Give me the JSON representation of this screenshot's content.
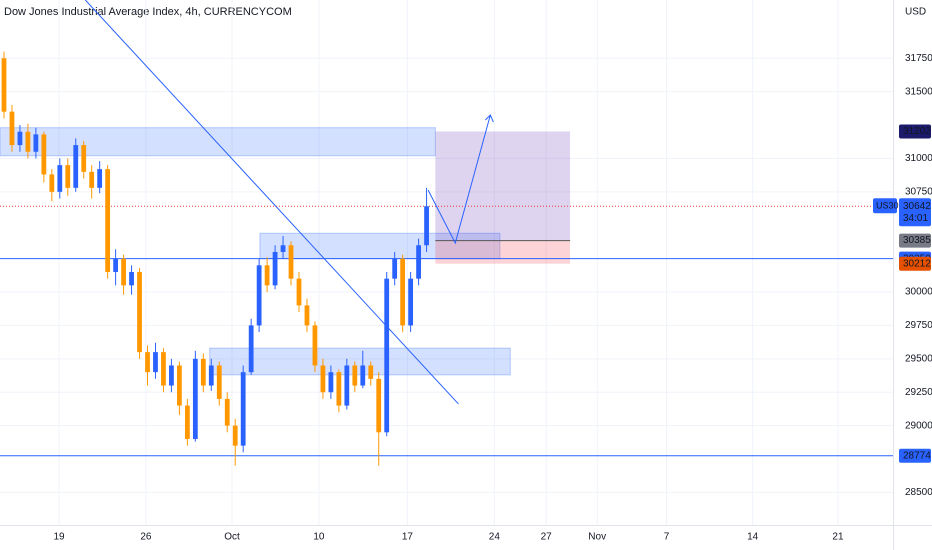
{
  "chart_data": {
    "type": "candlestick",
    "title": "Dow Jones Industrial Average Index, 4h, CURRENCYCOM",
    "y_unit": "USD",
    "symbol": "US30",
    "countdown": "34:01",
    "up_color": "#2962ff",
    "down_color": "#ff9800",
    "grid": true,
    "xlim": [
      0,
      112
    ],
    "ylim": [
      28256,
      32186
    ],
    "xticks": [
      {
        "value": 7.4,
        "label": "19"
      },
      {
        "value": 18.3,
        "label": "26"
      },
      {
        "value": 29.1,
        "label": "Oct"
      },
      {
        "value": 40,
        "label": "10"
      },
      {
        "value": 51.1,
        "label": "17"
      },
      {
        "value": 62,
        "label": "24"
      },
      {
        "value": 68.5,
        "label": "27"
      },
      {
        "value": 74.9,
        "label": "Nov"
      },
      {
        "value": 83.6,
        "label": "7"
      },
      {
        "value": 94.4,
        "label": "14"
      },
      {
        "value": 105.1,
        "label": "21"
      }
    ],
    "yticks": [
      28500,
      29000,
      29250,
      29500,
      29750,
      30000,
      30750,
      31000,
      31500,
      31750
    ],
    "open": [
      31750,
      31350,
      31100,
      31200,
      31050,
      31180,
      30880,
      30750,
      30950,
      30780,
      31100,
      30900,
      30780,
      30920,
      30150,
      30250,
      30050,
      30150,
      29550,
      29400,
      29550,
      29300,
      29450,
      29150,
      28900,
      29500,
      29300,
      29450,
      29200,
      29000,
      28850,
      29400,
      29750,
      30200,
      30050,
      30300,
      30350,
      30100,
      29900,
      29750,
      29450,
      29250,
      29400,
      29150,
      29450,
      29300,
      29450,
      29350,
      28950,
      30100,
      30250,
      29750,
      30100,
      30350
    ],
    "high": [
      31800,
      31400,
      31250,
      31260,
      31230,
      31200,
      30920,
      31000,
      31000,
      31150,
      31130,
      30950,
      30980,
      30950,
      30320,
      30280,
      30200,
      30180,
      29600,
      29620,
      29580,
      29500,
      29480,
      29200,
      29560,
      29540,
      29500,
      29480,
      29250,
      29050,
      29450,
      29800,
      30250,
      30260,
      30350,
      30420,
      30380,
      30150,
      29950,
      29780,
      29500,
      29450,
      29420,
      29500,
      29480,
      29560,
      29480,
      29400,
      30150,
      30300,
      30280,
      30150,
      30400,
      30780
    ],
    "low": [
      31300,
      31050,
      31050,
      31000,
      31000,
      30820,
      30680,
      30700,
      30720,
      30750,
      30850,
      30700,
      30740,
      30100,
      30050,
      29980,
      29980,
      29500,
      29300,
      29350,
      29250,
      29250,
      29080,
      28850,
      28880,
      29250,
      29260,
      29150,
      28950,
      28700,
      28800,
      29380,
      29700,
      30000,
      30020,
      30250,
      30050,
      29850,
      29700,
      29400,
      29200,
      29200,
      29100,
      29120,
      29250,
      29280,
      29300,
      28700,
      28920,
      30050,
      29700,
      29700,
      30050,
      30300
    ],
    "close": [
      31350,
      31100,
      31200,
      31050,
      31180,
      30880,
      30750,
      30950,
      30780,
      31100,
      30900,
      30780,
      30920,
      30150,
      30250,
      30050,
      30150,
      29550,
      29400,
      29550,
      29300,
      29450,
      29150,
      28900,
      29500,
      29300,
      29450,
      29200,
      29000,
      28850,
      29400,
      29750,
      30200,
      30050,
      30300,
      30350,
      30100,
      29900,
      29750,
      29450,
      29250,
      29400,
      29150,
      29450,
      29300,
      29450,
      29350,
      28950,
      30100,
      30250,
      29750,
      30100,
      30350,
      30642
    ],
    "zones": [
      {
        "x": [
          0,
          54.6
        ],
        "y": [
          31020,
          31230
        ]
      },
      {
        "x": [
          32.6,
          62.7
        ],
        "y": [
          30250,
          30440
        ]
      },
      {
        "x": [
          26.3,
          64
        ],
        "y": [
          29380,
          29580
        ]
      }
    ],
    "horizontal_lines": [
      30250,
      28774
    ],
    "trend_line": {
      "x": [
        10.7,
        57.5
      ],
      "y": [
        32186,
        29162
      ]
    },
    "projection": {
      "x": [
        53.7,
        57.1,
        61.5
      ],
      "y": [
        30763,
        30367,
        31325
      ]
    },
    "position": {
      "x": [
        54.6,
        71.5
      ],
      "target": 31202,
      "entry": 30385,
      "stop": 30212
    },
    "last_price": 30642,
    "price_tags": [
      {
        "value": 31202,
        "color": "#1c1a6b"
      },
      {
        "value": 30385,
        "color": "#787b86"
      },
      {
        "value": 30250,
        "color": "#2962ff"
      },
      {
        "value": 30212,
        "color": "#e65100"
      },
      {
        "value": 28774,
        "color": "#2962ff"
      }
    ]
  }
}
